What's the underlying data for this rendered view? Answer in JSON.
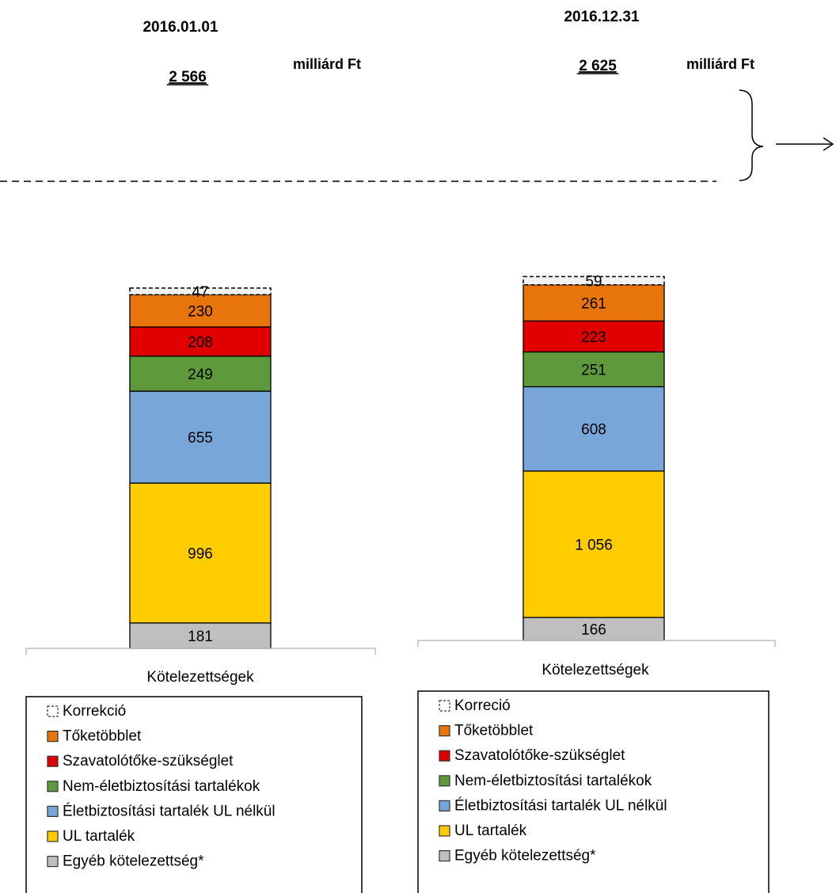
{
  "chart_data": [
    {
      "type": "bar",
      "stacked": true,
      "title": "2016.01.01",
      "unit": "milliárd Ft",
      "total": "2 566",
      "categories": [
        "Kötelezettségek"
      ],
      "series": [
        {
          "name": "Egyéb kötelezettség*",
          "values": [
            181
          ],
          "label": "181",
          "color": "#bfbfbf"
        },
        {
          "name": "UL tartalék",
          "values": [
            996
          ],
          "label": "996",
          "color": "#ffcc00"
        },
        {
          "name": "Életbiztosítási tartalék UL nélkül",
          "values": [
            655
          ],
          "label": "655",
          "color": "#78a6d8"
        },
        {
          "name": "Nem-életbiztosítási tartalékok",
          "values": [
            249
          ],
          "label": "249",
          "color": "#5e9a3b"
        },
        {
          "name": "Szavatolótőke-szükséglet",
          "values": [
            208
          ],
          "label": "208",
          "color": "#e00000"
        },
        {
          "name": "Tőketöbblet",
          "values": [
            230
          ],
          "label": "230",
          "color": "#e8740c"
        },
        {
          "name": "Korrekció",
          "values": [
            47
          ],
          "label": "47",
          "color": "#f2f2f2",
          "dashed": true
        }
      ],
      "legend": [
        {
          "name": "Korrekció",
          "color": "#f2f2f2",
          "dashed": true
        },
        {
          "name": "Tőketöbblet",
          "color": "#e8740c"
        },
        {
          "name": "Szavatolótőke-szükséglet",
          "color": "#e00000"
        },
        {
          "name": "Nem-életbiztosítási tartalékok",
          "color": "#5e9a3b"
        },
        {
          "name": "Életbiztosítási tartalék UL nélkül",
          "color": "#78a6d8"
        },
        {
          "name": "UL tartalék",
          "color": "#ffcc00"
        },
        {
          "name": "Egyéb kötelezettség*",
          "color": "#bfbfbf"
        }
      ]
    },
    {
      "type": "bar",
      "stacked": true,
      "title": "2016.12.31",
      "unit": "milliárd Ft",
      "total": "2 625",
      "categories": [
        "Kötelezettségek"
      ],
      "series": [
        {
          "name": "Egyéb kötelezettség*",
          "values": [
            166
          ],
          "label": "166",
          "color": "#bfbfbf"
        },
        {
          "name": "UL tartalék",
          "values": [
            1056
          ],
          "label": "1 056",
          "color": "#ffcc00"
        },
        {
          "name": "Életbiztosítási tartalék UL nélkül",
          "values": [
            608
          ],
          "label": "608",
          "color": "#78a6d8"
        },
        {
          "name": "Nem-életbiztosítási tartalékok",
          "values": [
            251
          ],
          "label": "251",
          "color": "#5e9a3b"
        },
        {
          "name": "Szavatolótőke-szükséglet",
          "values": [
            223
          ],
          "label": "223",
          "color": "#e00000"
        },
        {
          "name": "Tőketöbblet",
          "values": [
            261
          ],
          "label": "261",
          "color": "#e8740c"
        },
        {
          "name": "Korreció",
          "values": [
            59
          ],
          "label": "59",
          "color": "#f2f2f2",
          "dashed": true
        }
      ],
      "legend": [
        {
          "name": "Korreció",
          "color": "#f2f2f2",
          "dashed": true
        },
        {
          "name": "Tőketöbblet",
          "color": "#e8740c"
        },
        {
          "name": "Szavatolótőke-szükséglet",
          "color": "#e00000"
        },
        {
          "name": "Nem-életbiztosítási tartalékok",
          "color": "#5e9a3b"
        },
        {
          "name": "Életbiztosítási tartalék UL nélkül",
          "color": "#78a6d8"
        },
        {
          "name": "UL tartalék",
          "color": "#ffcc00"
        },
        {
          "name": "Egyéb kötelezettség*",
          "color": "#bfbfbf"
        }
      ]
    }
  ]
}
